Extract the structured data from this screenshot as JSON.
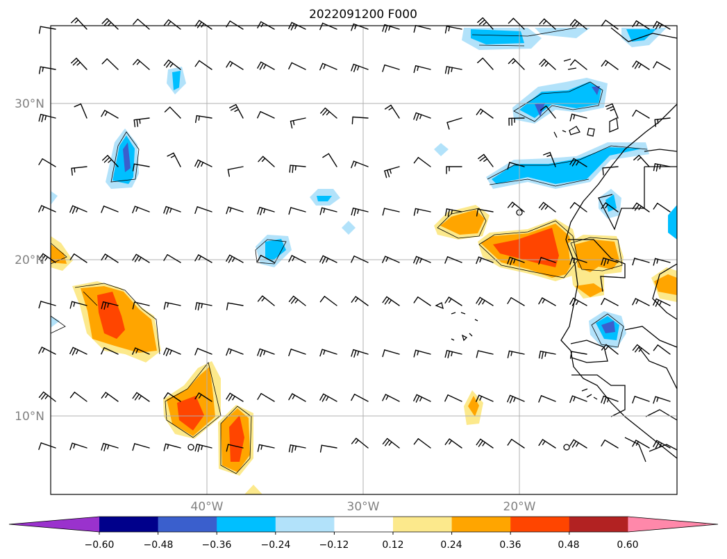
{
  "title": "2022091200 F000",
  "lat_labels": [
    "30°N",
    "20°N",
    "10°N"
  ],
  "lon_labels": [
    "40°W",
    "30°W",
    "20°W"
  ],
  "colorbar": {
    "colors": [
      "#9a32cd",
      "#00008b",
      "#3a5fcd",
      "#00bfff",
      "#b2e2fa",
      "#ffffff",
      "#fce98c",
      "#ffa500",
      "#ff4500",
      "#b22222",
      "#ff88aa"
    ],
    "tick_labels": [
      "−0.60",
      "−0.48",
      "−0.36",
      "−0.24",
      "−0.12",
      "0.12",
      "0.24",
      "0.36",
      "0.48",
      "0.60"
    ]
  },
  "colors": {
    "grid": "#b0b0b0",
    "coastline": "#000000",
    "wind_barb": "#000000"
  }
}
